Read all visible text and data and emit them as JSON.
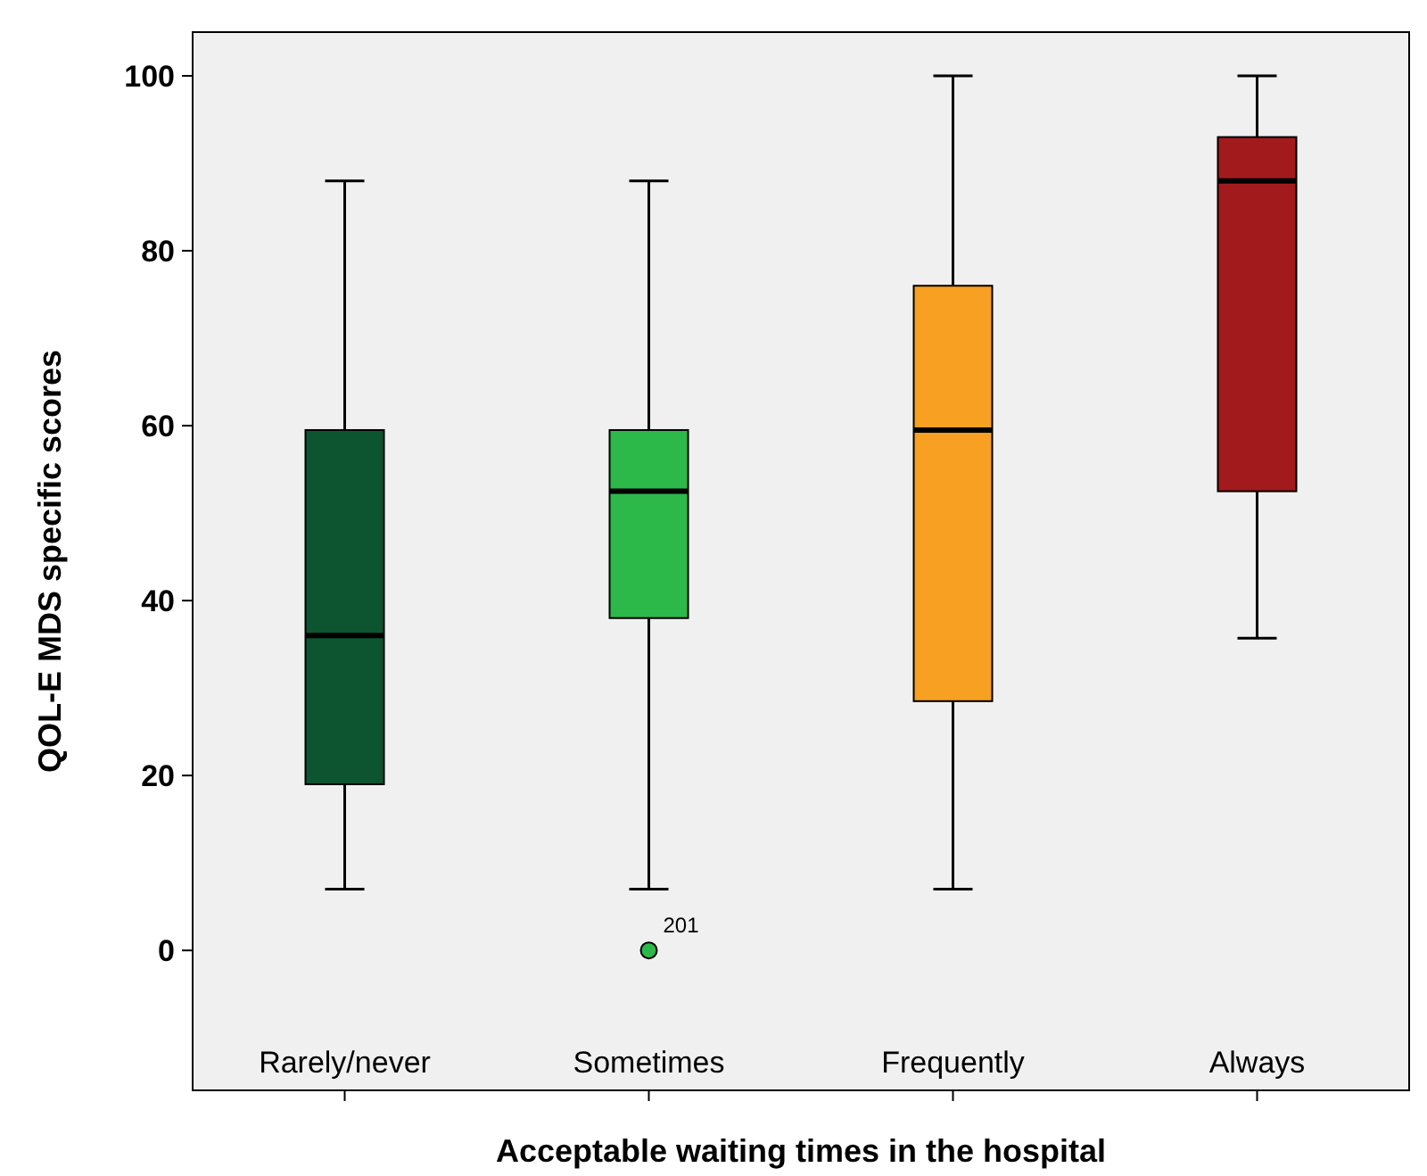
{
  "chart_data": {
    "type": "box",
    "xlabel": "Acceptable waiting times in the hospital",
    "ylabel": "QOL-E MDS specific scores",
    "categories": [
      "Rarely/never",
      "Sometimes",
      "Frequently",
      "Always"
    ],
    "colors": [
      "#0c5530",
      "#2db84a",
      "#f7a021",
      "#a31a1c"
    ],
    "boxes": [
      {
        "low": 7,
        "q1": 19,
        "median": 36,
        "q3": 59.5,
        "high": 88
      },
      {
        "low": 7,
        "q1": 38,
        "median": 52.5,
        "q3": 59.5,
        "high": 88,
        "outliers": [
          0
        ]
      },
      {
        "low": 7,
        "q1": 28.5,
        "median": 59.5,
        "q3": 76,
        "high": 100
      },
      {
        "low": 35.7,
        "q1": 52.5,
        "median": 88,
        "q3": 93,
        "high": 100
      }
    ],
    "ylim": [
      -16,
      105
    ],
    "yticks": [
      0,
      20,
      40,
      60,
      80,
      100
    ],
    "grid": false,
    "annotations": [
      "201"
    ]
  }
}
